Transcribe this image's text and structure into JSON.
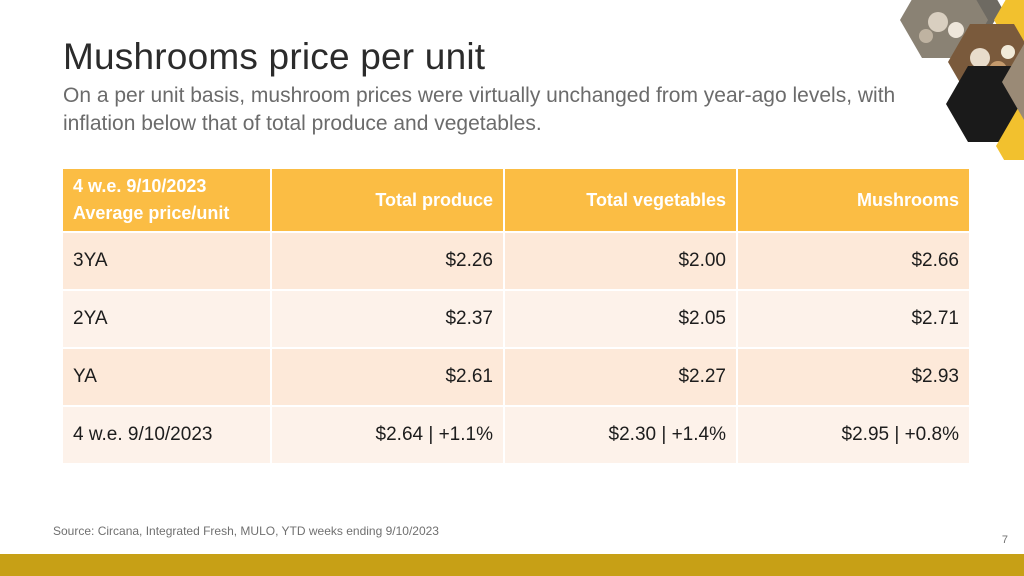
{
  "title": "Mushrooms price per unit",
  "subtitle": "On a per unit basis, mushroom prices were virtually unchanged from year-ago levels, with inflation below that of total produce and vegetables.",
  "table": {
    "header": {
      "line1": "4 w.e. 9/10/2023",
      "line2": "Average price/unit",
      "col1": "Total produce",
      "col2": "Total vegetables",
      "col3": "Mushrooms"
    },
    "rows": [
      {
        "label": "3YA",
        "c1": "$2.26",
        "c2": "$2.00",
        "c3": "$2.66"
      },
      {
        "label": "2YA",
        "c1": "$2.37",
        "c2": "$2.05",
        "c3": "$2.71"
      },
      {
        "label": "YA",
        "c1": "$2.61",
        "c2": "$2.27",
        "c3": "$2.93"
      },
      {
        "label": "4 w.e. 9/10/2023",
        "c1": "$2.64 | +1.1%",
        "c2": "$2.30 | +1.4%",
        "c3": "$2.95 | +0.8%"
      }
    ]
  },
  "footnote": "Source: Circana, Integrated Fresh, MULO, YTD weeks ending 9/10/2023",
  "page_number": "7",
  "colors": {
    "header_bg": "#fbbd44",
    "row_dark": "#fde9d9",
    "row_light": "#fdf2ea",
    "bottom_bar": "#c7a016",
    "hex_dark": "#1a1a1a",
    "hex_gold": "#f2c12e"
  },
  "decoration": {
    "icon": "honeycomb-mushroom-photos-icon"
  }
}
